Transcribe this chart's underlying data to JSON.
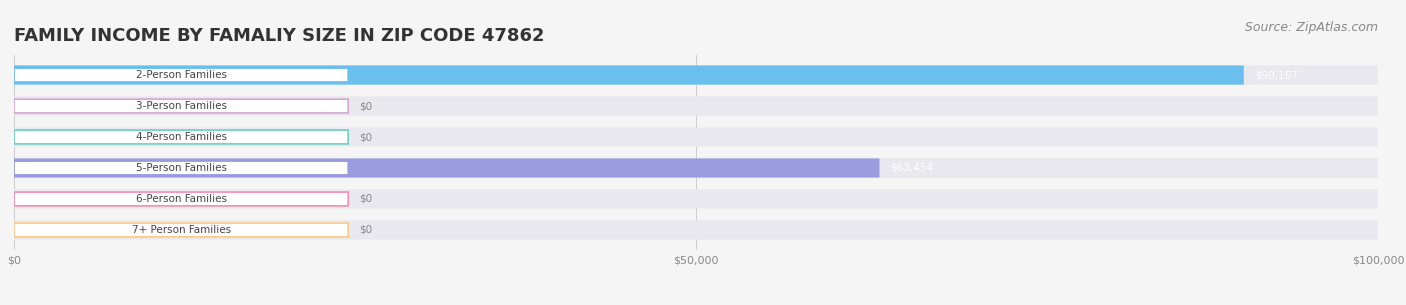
{
  "title": "FAMILY INCOME BY FAMALIY SIZE IN ZIP CODE 47862",
  "source": "Source: ZipAtlas.com",
  "categories": [
    "2-Person Families",
    "3-Person Families",
    "4-Person Families",
    "5-Person Families",
    "6-Person Families",
    "7+ Person Families"
  ],
  "values": [
    90167,
    0,
    0,
    63454,
    0,
    0
  ],
  "bar_colors": [
    "#6bbfee",
    "#d4a8d4",
    "#6ecfc0",
    "#9b9be0",
    "#f48fb1",
    "#f9c98a"
  ],
  "label_colors": [
    "#5a9ec0",
    "#b07ab0",
    "#4aab9a",
    "#7070c0",
    "#d06080",
    "#d0a060"
  ],
  "xlim": [
    0,
    100000
  ],
  "xticks": [
    0,
    50000,
    100000
  ],
  "xtick_labels": [
    "$0",
    "$50,000",
    "$100,000"
  ],
  "value_labels": [
    "$90,167",
    "$0",
    "$0",
    "$63,454",
    "$0",
    "$0"
  ],
  "background_color": "#f5f5f5",
  "bar_bg_color": "#e8e8ee",
  "title_fontsize": 13,
  "source_fontsize": 9
}
